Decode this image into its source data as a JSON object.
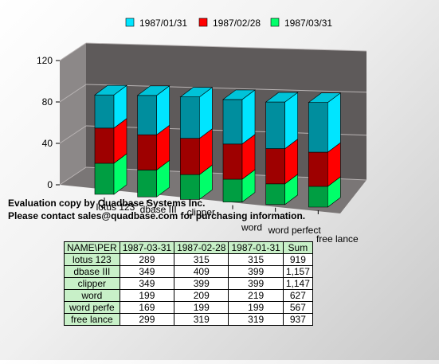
{
  "chart_data": {
    "type": "bar",
    "stacked": true,
    "three_d": true,
    "categories": [
      "lotus 123",
      "dbase III",
      "clipper",
      "word",
      "word perfect",
      "free lance"
    ],
    "series": [
      {
        "name": "1987/01/31",
        "color": "#00e5ff",
        "values": [
          32,
          38,
          40,
          43,
          45,
          48
        ]
      },
      {
        "name": "1987/02/28",
        "color": "#ff0000",
        "values": [
          34,
          34,
          35,
          34,
          34,
          33
        ]
      },
      {
        "name": "1987/03/31",
        "color": "#00ff6a",
        "values": [
          30,
          26,
          24,
          22,
          20,
          20
        ]
      }
    ],
    "y_ticks": [
      "0",
      "40",
      "80",
      "120"
    ],
    "ylim": [
      0,
      120
    ],
    "grid": true,
    "legend_position": "top"
  },
  "watermark": {
    "line1": "Evaluation copy by Quadbase Systems Inc.",
    "line2": "Please contact sales@quadbase.com for purchasing information."
  },
  "table": {
    "headers": [
      "NAME\\PER",
      "1987-03-31",
      "1987-02-28",
      "1987-01-31",
      "Sum"
    ],
    "rows": [
      [
        "lotus 123",
        "289",
        "315",
        "315",
        "919"
      ],
      [
        "dbase III",
        "349",
        "409",
        "399",
        "1,157"
      ],
      [
        "clipper",
        "349",
        "399",
        "399",
        "1,147"
      ],
      [
        "word",
        "199",
        "209",
        "219",
        "627"
      ],
      [
        "word perfe",
        "169",
        "199",
        "199",
        "567"
      ],
      [
        "free lance",
        "299",
        "319",
        "319",
        "937"
      ]
    ]
  }
}
